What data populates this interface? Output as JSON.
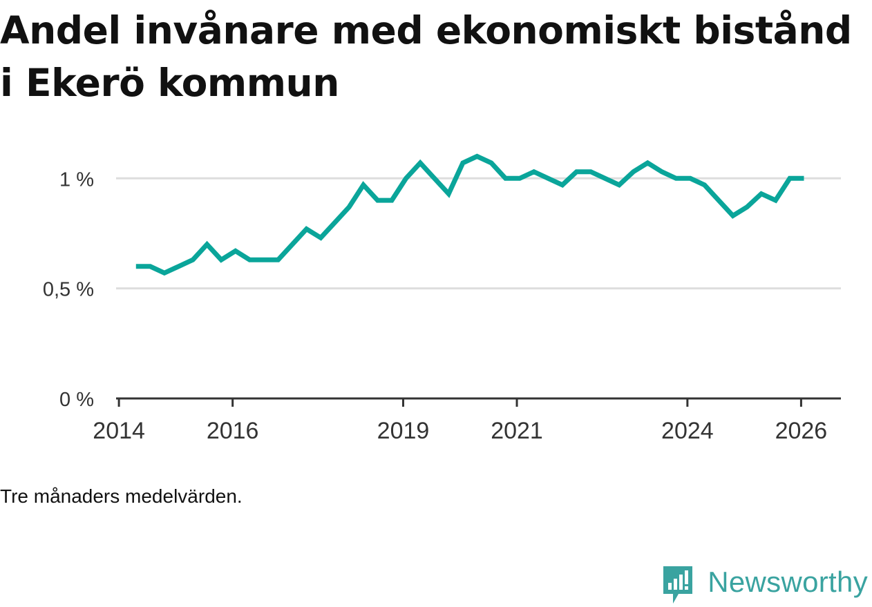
{
  "chart_data": {
    "type": "line",
    "title": "Andel invånare med ekonomiskt bistånd i Ekerö kommun",
    "ylabel": "",
    "xlabel": "",
    "ylim": [
      0,
      1.12
    ],
    "xlim": [
      2013.95,
      2026.7
    ],
    "y_ticks": [
      {
        "value": 0,
        "label": "0 %"
      },
      {
        "value": 0.5,
        "label": "0,5 %"
      },
      {
        "value": 1.0,
        "label": "1 %"
      }
    ],
    "x_ticks": [
      {
        "value": 2014,
        "label": "2014"
      },
      {
        "value": 2016,
        "label": "2016"
      },
      {
        "value": 2019,
        "label": "2019"
      },
      {
        "value": 2021,
        "label": "2021"
      },
      {
        "value": 2024,
        "label": "2024"
      },
      {
        "value": 2026,
        "label": "2026"
      }
    ],
    "grid": true,
    "color": "#0aa59a",
    "series": [
      {
        "name": "Andel invånare med ekonomiskt bistånd",
        "x": [
          2014.3,
          2014.55,
          2014.8,
          2015.05,
          2015.3,
          2015.55,
          2015.8,
          2016.05,
          2016.3,
          2016.55,
          2016.8,
          2017.05,
          2017.3,
          2017.55,
          2017.8,
          2018.05,
          2018.3,
          2018.55,
          2018.8,
          2019.05,
          2019.3,
          2019.55,
          2019.8,
          2020.05,
          2020.3,
          2020.55,
          2020.8,
          2021.05,
          2021.3,
          2021.55,
          2021.8,
          2022.05,
          2022.3,
          2022.55,
          2022.8,
          2023.05,
          2023.3,
          2023.55,
          2023.8,
          2024.05,
          2024.3,
          2024.55,
          2024.8,
          2025.05,
          2025.3,
          2025.55,
          2025.8,
          2026.05
        ],
        "values": [
          0.6,
          0.6,
          0.57,
          0.6,
          0.63,
          0.7,
          0.63,
          0.67,
          0.63,
          0.63,
          0.63,
          0.7,
          0.77,
          0.73,
          0.8,
          0.87,
          0.97,
          0.9,
          0.9,
          1.0,
          1.07,
          1.0,
          0.93,
          1.07,
          1.1,
          1.07,
          1.0,
          1.0,
          1.03,
          1.0,
          0.97,
          1.03,
          1.03,
          1.0,
          0.97,
          1.03,
          1.07,
          1.03,
          1.0,
          1.0,
          0.97,
          0.9,
          0.83,
          0.87,
          0.93,
          0.9,
          1.0,
          1.0
        ]
      }
    ]
  },
  "page": {
    "title": "Andel invånare med ekonomiskt bistånd i Ekerö kommun",
    "note": "Tre månaders medelvärden.",
    "brand": "Newsworthy",
    "brand_color": "#3aa3a0"
  }
}
